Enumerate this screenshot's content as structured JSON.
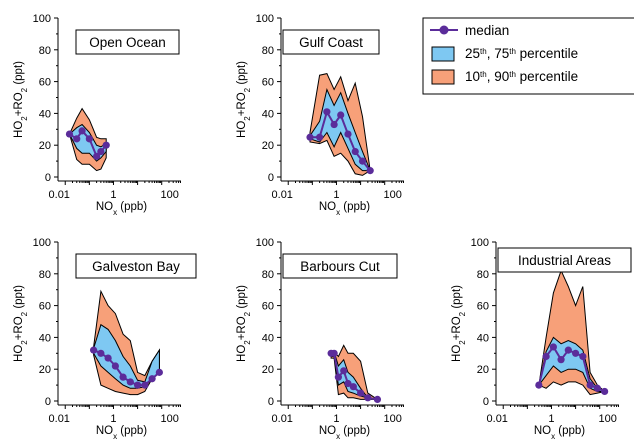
{
  "chart_data": {
    "type": "area",
    "legend": {
      "placement": "top-right",
      "median_label": "median",
      "iqr_label": [
        "25",
        "th",
        ", 75",
        "th",
        " percentile"
      ],
      "p1090_label": [
        "10",
        "th",
        ", 90",
        "th",
        " percentile"
      ]
    },
    "colors": {
      "median": "#5B2C9A",
      "iqr": "#7EC8F2",
      "p1090": "#F7A079",
      "outline": "#000000"
    },
    "axes": {
      "xlabel": [
        "NO",
        "x",
        " (ppb)"
      ],
      "ylabel": [
        "HO",
        "2",
        "+RO",
        "2",
        " (ppt)"
      ],
      "x_scale": "log",
      "x_ticks": [
        "0.01",
        "1",
        "100"
      ],
      "ylim": [
        0,
        100
      ],
      "y_ticks": [
        "0",
        "20",
        "40",
        "60",
        "80",
        "100"
      ]
    },
    "panels": [
      {
        "title": "Open Ocean",
        "x": [
          0.015,
          0.03,
          0.05,
          0.1,
          0.2,
          0.3,
          0.5
        ],
        "median": [
          27,
          24,
          29,
          24,
          13,
          16,
          20
        ],
        "p25": [
          27,
          18,
          15,
          15,
          10,
          12,
          16
        ],
        "p75": [
          27,
          31,
          33,
          28,
          20,
          19,
          21
        ],
        "p10": [
          27,
          11,
          8,
          8,
          4,
          5,
          12
        ],
        "p90": [
          27,
          37,
          43,
          36,
          25,
          24,
          24
        ]
      },
      {
        "title": "Gulf Coast",
        "x": [
          0.08,
          0.2,
          0.4,
          0.8,
          1.5,
          3,
          6,
          12,
          25
        ],
        "median": [
          25,
          25,
          41,
          33,
          39,
          27,
          16,
          10,
          4
        ],
        "p25": [
          24,
          22,
          28,
          19,
          28,
          18,
          8,
          4,
          4
        ],
        "p75": [
          26,
          35,
          55,
          45,
          53,
          40,
          28,
          16,
          4
        ],
        "p10": [
          22,
          21,
          23,
          13,
          15,
          10,
          2,
          1,
          4
        ],
        "p90": [
          28,
          64,
          65,
          55,
          63,
          48,
          59,
          38,
          4
        ]
      },
      {
        "title": "Galveston Bay",
        "x": [
          0.15,
          0.3,
          0.6,
          1.2,
          2.5,
          5,
          10,
          20,
          40,
          80
        ],
        "median": [
          32,
          30,
          27,
          22,
          15,
          12,
          10,
          10,
          14,
          18
        ],
        "p25": [
          30,
          22,
          18,
          14,
          10,
          8,
          8,
          9,
          14,
          18
        ],
        "p75": [
          33,
          48,
          45,
          38,
          28,
          22,
          13,
          12,
          25,
          32
        ],
        "p10": [
          29,
          10,
          8,
          6,
          5,
          4,
          4,
          6,
          14,
          18
        ],
        "p90": [
          34,
          69,
          60,
          55,
          42,
          38,
          18,
          16,
          25,
          32
        ]
      },
      {
        "title": "Barbours Cut",
        "x": [
          0.6,
          0.8,
          1.2,
          2,
          3,
          5,
          10,
          20,
          50
        ],
        "median": [
          30,
          30,
          15,
          19,
          11,
          9,
          5,
          2,
          1
        ],
        "p25": [
          28,
          28,
          10,
          12,
          6,
          5,
          3,
          2,
          1
        ],
        "p75": [
          31,
          31,
          22,
          26,
          18,
          15,
          8,
          2,
          1
        ],
        "p10": [
          27,
          27,
          4,
          5,
          2,
          2,
          1,
          1,
          1
        ],
        "p90": [
          31,
          31,
          28,
          35,
          30,
          30,
          25,
          5,
          1
        ]
      },
      {
        "title": "Industrial Areas",
        "x": [
          0.3,
          0.6,
          1.2,
          2.5,
          5,
          10,
          20,
          40,
          80,
          160
        ],
        "median": [
          10,
          28,
          34,
          26,
          32,
          30,
          28,
          10,
          8,
          6
        ],
        "p25": [
          10,
          16,
          22,
          18,
          20,
          20,
          18,
          8,
          6,
          6
        ],
        "p75": [
          10,
          31,
          40,
          36,
          38,
          36,
          32,
          14,
          8,
          6
        ],
        "p10": [
          10,
          8,
          12,
          10,
          12,
          12,
          10,
          4,
          5,
          6
        ],
        "p90": [
          10,
          40,
          68,
          82,
          72,
          60,
          72,
          18,
          10,
          6
        ]
      }
    ]
  }
}
